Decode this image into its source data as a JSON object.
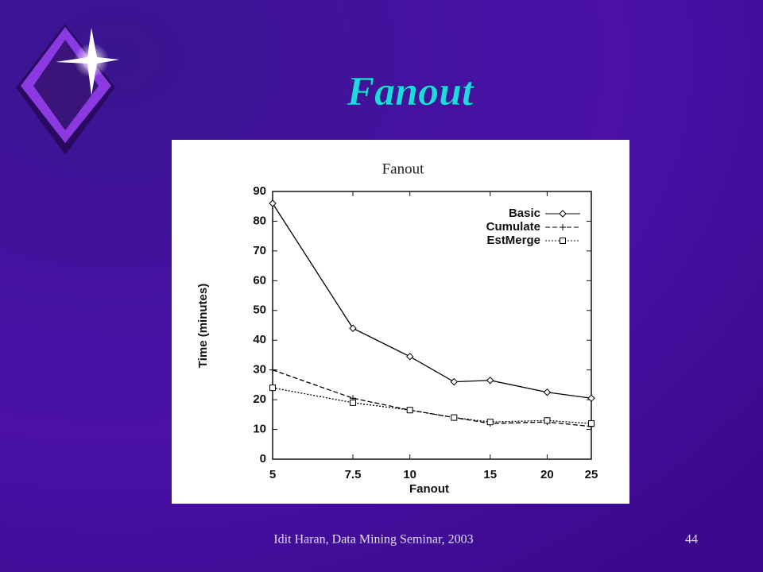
{
  "slide": {
    "title": "Fanout",
    "footer": "Idit Haran, Data Mining Seminar, 2003",
    "page": "44"
  },
  "chart_data": {
    "type": "line",
    "title": "Fanout",
    "x_label": "Fanout",
    "y_label": "Time (minutes)",
    "x": [
      5,
      7.5,
      10,
      12.5,
      15,
      20,
      25
    ],
    "series": [
      {
        "name": "Basic",
        "color": "#000000",
        "dash": "solid",
        "marker": "diamond",
        "values": [
          86,
          44,
          34.5,
          26,
          26.5,
          22.5,
          20.5
        ]
      },
      {
        "name": "Cumulate",
        "color": "#000000",
        "dash": "dashed",
        "marker": "plus",
        "values": [
          30,
          20.5,
          16.5,
          14,
          12,
          12.5,
          11
        ]
      },
      {
        "name": "EstMerge",
        "color": "#000000",
        "dash": "dotted",
        "marker": "square",
        "values": [
          24,
          19,
          16.5,
          14,
          12.5,
          13,
          12
        ]
      }
    ],
    "xlim": [
      5,
      25
    ],
    "xticks": [
      5,
      7.5,
      10,
      15,
      20,
      25
    ],
    "x_scale": "log",
    "ylim": [
      0,
      90
    ],
    "yticks": [
      0,
      10,
      20,
      30,
      40,
      50,
      60,
      70,
      80,
      90
    ],
    "legend": "top-right"
  }
}
